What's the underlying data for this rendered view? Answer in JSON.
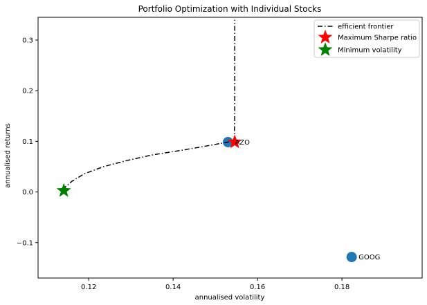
{
  "chart_data": {
    "type": "scatter",
    "title": "Portfolio Optimization with Individual Stocks",
    "xlabel": "annualised volatility",
    "ylabel": "annualised returns",
    "xlim": [
      0.108,
      0.199
    ],
    "ylim": [
      -0.17,
      0.345
    ],
    "xticks": [
      {
        "value": 0.12,
        "label": "0.12"
      },
      {
        "value": 0.14,
        "label": "0.14"
      },
      {
        "value": 0.16,
        "label": "0.16"
      },
      {
        "value": 0.18,
        "label": "0.18"
      }
    ],
    "yticks": [
      {
        "value": -0.1,
        "label": "−0.1"
      },
      {
        "value": 0.0,
        "label": "0.0"
      },
      {
        "value": 0.1,
        "label": "0.1"
      },
      {
        "value": 0.2,
        "label": "0.2"
      },
      {
        "value": 0.3,
        "label": "0.3"
      }
    ],
    "stocks": [
      {
        "name": "AZO",
        "x": 0.153,
        "y": 0.0985,
        "color": "#1f77b4"
      },
      {
        "name": "GOOG",
        "x": 0.1823,
        "y": -0.1285,
        "color": "#1f77b4"
      }
    ],
    "frontier": {
      "name": "efficient frontier",
      "color": "#000000",
      "x": [
        0.1141,
        0.1145,
        0.116,
        0.119,
        0.1235,
        0.129,
        0.135,
        0.141,
        0.146,
        0.15,
        0.153,
        0.1545,
        0.1546,
        0.1546,
        0.1546,
        0.1546,
        0.1546,
        0.1546
      ],
      "y": [
        0.003,
        0.01,
        0.021,
        0.036,
        0.05,
        0.062,
        0.073,
        0.081,
        0.088,
        0.094,
        0.0985,
        0.101,
        0.15,
        0.2,
        0.25,
        0.3,
        0.32,
        0.34
      ]
    },
    "max_sharpe": {
      "name": "Maximum Sharpe ratio",
      "x": 0.1546,
      "y": 0.0985,
      "color": "#ff0000"
    },
    "min_volatility": {
      "name": "Minimum volatility",
      "x": 0.1141,
      "y": 0.0025,
      "color": "#008000"
    },
    "legend": {
      "placement": "top-right",
      "entries": [
        "efficient frontier",
        "Maximum Sharpe ratio",
        "Minimum volatility"
      ]
    },
    "grid": false
  }
}
